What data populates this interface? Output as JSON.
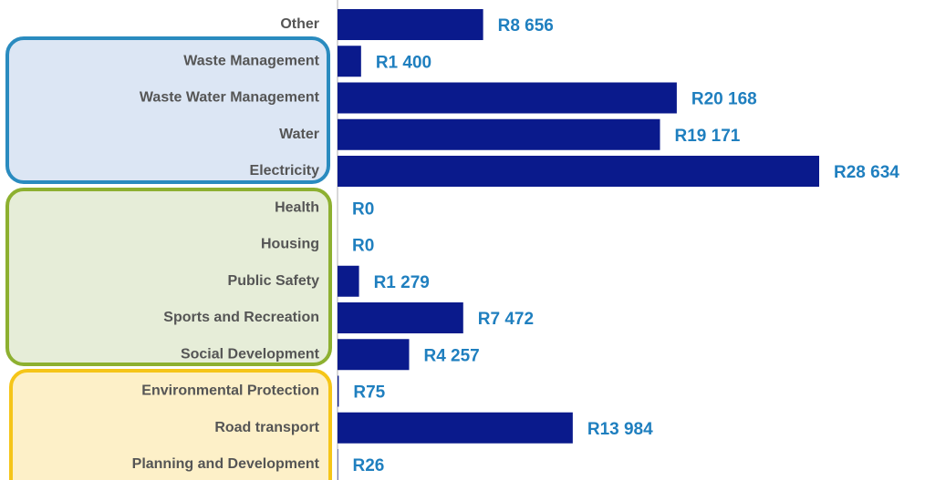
{
  "chart_data": {
    "type": "bar",
    "orientation": "horizontal",
    "categories": [
      "Other",
      "Waste Management",
      "Waste Water Management",
      "Water",
      "Electricity",
      "Health",
      "Housing",
      "Public Safety",
      "Sports and Recreation",
      "Social Development",
      "Environmental Protection",
      "Road transport",
      "Planning and Development"
    ],
    "values": [
      8656,
      1400,
      20168,
      19171,
      28634,
      0,
      0,
      1279,
      7472,
      4257,
      75,
      13984,
      26
    ],
    "value_labels": [
      "R8 656",
      "R1 400",
      "R20 168",
      "R19 171",
      "R28 634",
      "R0",
      "R0",
      "R1 279",
      "R7 472",
      "R4 257",
      "R75",
      "R13 984",
      "R26"
    ],
    "color": "#0a1a8c"
  }
}
